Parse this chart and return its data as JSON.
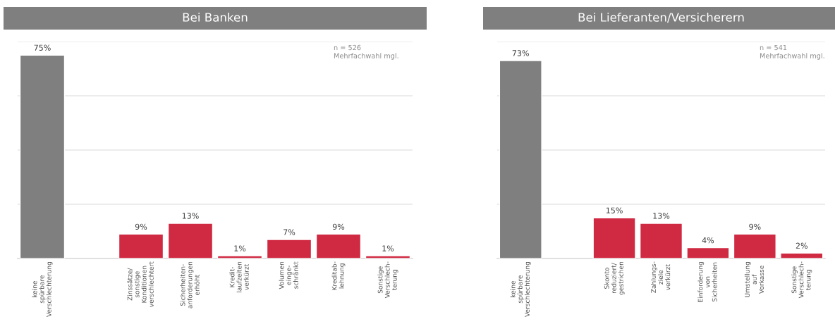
{
  "chart_data": [
    {
      "type": "bar",
      "title": "Bei Banken",
      "categories": [
        "keine\nspürbare\nVerschlechterung",
        null,
        "Zinssätze/\nsonstige\nKonditionen\nverschlechtert",
        "Sicherheiten-\nanforderungen\nerhöht",
        "Kredit-\nlaufzeiten\nverkürzt",
        "Volumen\neinge-\nschränkt",
        "Kreditab-\nlehnung",
        "Sonstige\nVerschlech-\nterung"
      ],
      "values": [
        75,
        null,
        9,
        13,
        1,
        7,
        9,
        1
      ],
      "colors": [
        "#7f7f7f",
        "#7f7f7f",
        "#d02a43",
        "#d02a43",
        "#d02a43",
        "#d02a43",
        "#d02a43",
        "#d02a43"
      ],
      "value_labels": [
        "75%",
        null,
        "9%",
        "13%",
        "1%",
        "7%",
        "9%",
        "1%"
      ],
      "ylim": [
        0,
        80
      ],
      "yticks": [
        {
          "value": 0,
          "label": null
        },
        {
          "value": 20,
          "label": null
        },
        {
          "value": 40,
          "label": null
        },
        {
          "value": 60,
          "label": null
        },
        {
          "value": 80,
          "label": null
        }
      ],
      "tick_labels": "x",
      "grid": "y",
      "annotations": [
        "n = 526\nMehrfachwahl mgl."
      ]
    },
    {
      "type": "bar",
      "title": "Bei Lieferanten/Versicherern",
      "categories": [
        "keine\nspürbare\nVerschlechterung",
        null,
        "Skonto\nreduziert/\ngestrichen",
        "Zahlungs-\nziele\nverkürzt",
        "Einforderung\nvon\nSicherheiten",
        "Umstellung\nauf\nVorkasse",
        "Sonstige\nVerschlech-\nterung"
      ],
      "values": [
        73,
        null,
        15,
        13,
        4,
        9,
        2
      ],
      "colors": [
        "#7f7f7f",
        "#7f7f7f",
        "#d02a43",
        "#d02a43",
        "#d02a43",
        "#d02a43",
        "#d02a43"
      ],
      "value_labels": [
        "73%",
        null,
        "15%",
        "13%",
        "4%",
        "9%",
        "2%"
      ],
      "ylim": [
        0,
        80
      ],
      "yticks": [
        {
          "value": 0,
          "label": null
        },
        {
          "value": 20,
          "label": null
        },
        {
          "value": 40,
          "label": null
        },
        {
          "value": 60,
          "label": null
        },
        {
          "value": 80,
          "label": null
        }
      ],
      "tick_labels": "x",
      "grid": "y",
      "annotations": [
        "n = 541\nMehrfachwahl mgl."
      ]
    }
  ]
}
